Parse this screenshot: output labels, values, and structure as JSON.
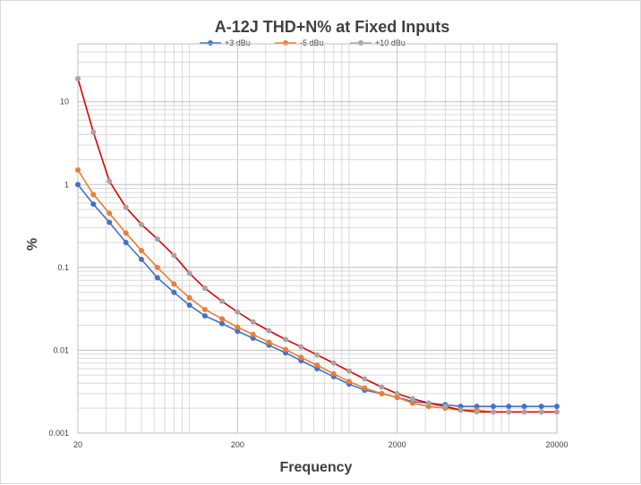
{
  "chart_data": {
    "type": "line",
    "title": "A-12J THD+N% at Fixed Inputs",
    "xlabel": "Frequency",
    "ylabel": "%",
    "x_scale": "log",
    "y_scale": "log",
    "xlim": [
      20,
      20000
    ],
    "ylim": [
      0.001,
      50
    ],
    "grid": true,
    "legend_position": "top",
    "x_tick_labels": [
      "20",
      "200",
      "2000",
      "20000"
    ],
    "y_tick_labels": [
      "0.001",
      "0.01",
      "0.1",
      "1",
      "10"
    ],
    "x_ticks": [
      20,
      200,
      2000,
      20000
    ],
    "y_ticks": [
      0.001,
      0.01,
      0.1,
      1,
      10
    ],
    "x": [
      20,
      25,
      31.5,
      40,
      50,
      63,
      80,
      100,
      125,
      160,
      200,
      250,
      315,
      400,
      500,
      630,
      800,
      1000,
      1250,
      1600,
      2000,
      2500,
      3150,
      4000,
      5000,
      6300,
      8000,
      10000,
      12500,
      16000,
      20000
    ],
    "series": [
      {
        "name": "+3 dBu",
        "color": "#4472c4",
        "values": [
          1.0,
          0.58,
          0.35,
          0.2,
          0.125,
          0.075,
          0.05,
          0.035,
          0.026,
          0.021,
          0.017,
          0.014,
          0.0115,
          0.0093,
          0.0075,
          0.006,
          0.0048,
          0.0039,
          0.0033,
          0.003,
          0.0027,
          0.0024,
          0.0023,
          0.0022,
          0.0021,
          0.0021,
          0.0021,
          0.0021,
          0.0021,
          0.0021,
          0.0021
        ]
      },
      {
        "name": "-5 dBu",
        "color": "#ed7d31",
        "values": [
          1.5,
          0.76,
          0.45,
          0.26,
          0.16,
          0.1,
          0.063,
          0.043,
          0.031,
          0.024,
          0.019,
          0.0155,
          0.0125,
          0.0102,
          0.0082,
          0.0066,
          0.0052,
          0.0042,
          0.0035,
          0.003,
          0.0027,
          0.0023,
          0.0021,
          0.002,
          0.0019,
          0.0019,
          0.0018,
          0.0018,
          0.0018,
          0.0018,
          0.0018
        ]
      },
      {
        "name": "+10 dBu",
        "color": "#a5a5a5",
        "line_color": "#e00000",
        "values": [
          19.0,
          4.3,
          1.1,
          0.53,
          0.33,
          0.22,
          0.14,
          0.085,
          0.056,
          0.039,
          0.029,
          0.022,
          0.0172,
          0.0135,
          0.011,
          0.0088,
          0.007,
          0.0056,
          0.0045,
          0.0036,
          0.003,
          0.0026,
          0.0023,
          0.0021,
          0.0019,
          0.0018,
          0.0018,
          0.0018,
          0.0018,
          0.0018,
          0.0018
        ]
      }
    ]
  }
}
